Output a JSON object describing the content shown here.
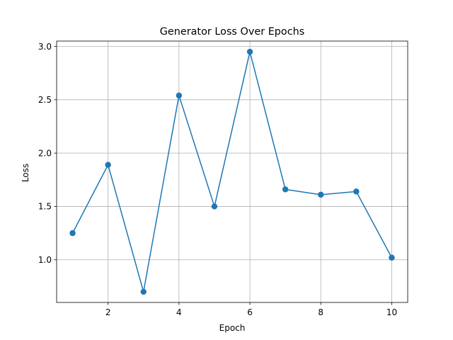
{
  "chart_data": {
    "type": "line",
    "title": "Generator Loss Over Epochs",
    "xlabel": "Epoch",
    "ylabel": "Loss",
    "x": [
      1,
      2,
      3,
      4,
      5,
      6,
      7,
      8,
      9,
      10
    ],
    "series": [
      {
        "values": [
          1.25,
          1.89,
          0.7,
          2.54,
          1.5,
          2.95,
          1.66,
          1.61,
          1.64,
          1.02
        ],
        "color": "#1f77b4",
        "marker": "circle"
      }
    ],
    "xlim": [
      0.55,
      10.45
    ],
    "ylim": [
      0.6,
      3.05
    ],
    "xticks": [
      2,
      4,
      6,
      8,
      10
    ],
    "yticks": [
      1.0,
      1.5,
      2.0,
      2.5,
      3.0
    ],
    "ytick_labels": [
      "1.0",
      "1.5",
      "2.0",
      "2.5",
      "3.0"
    ],
    "grid": true,
    "grid_color": "#b0b0b0"
  }
}
